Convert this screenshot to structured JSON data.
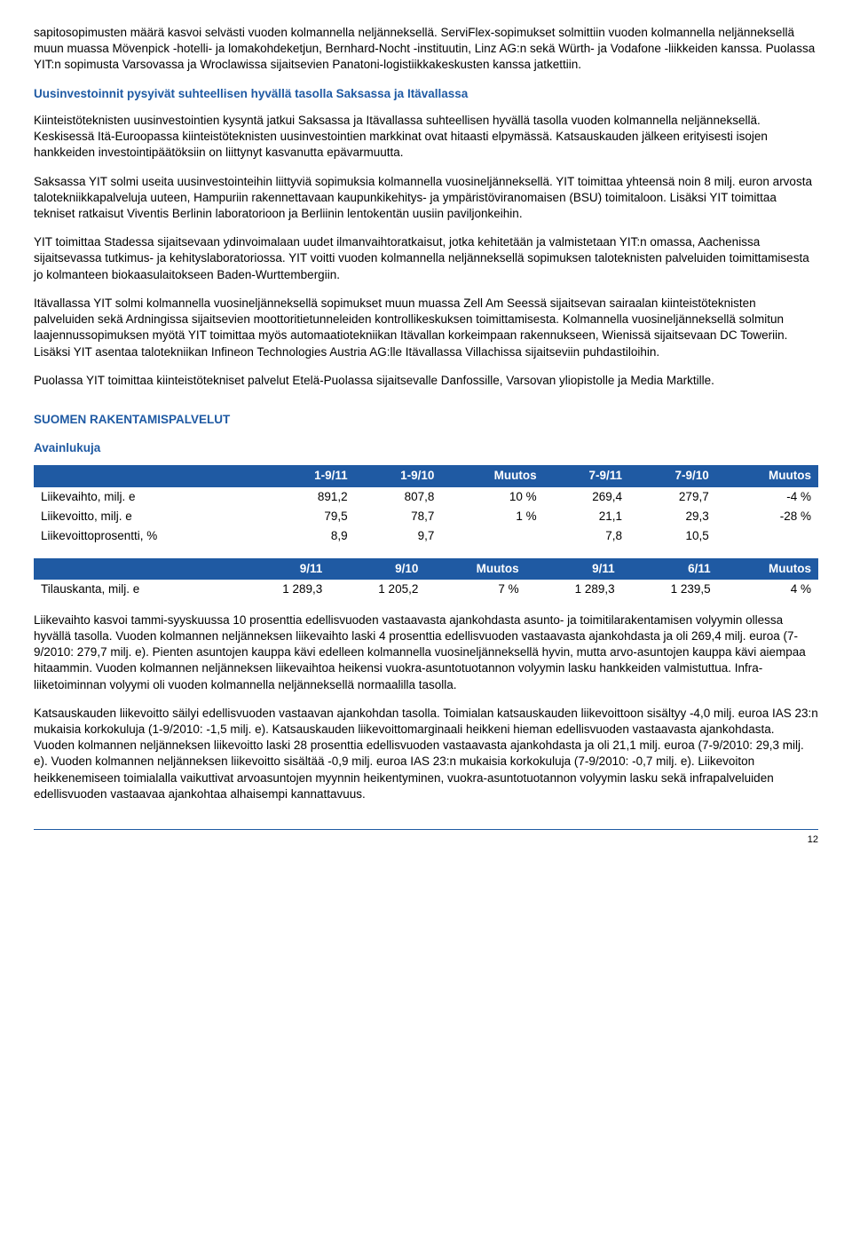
{
  "para1": "sapitosopimusten määrä kasvoi selvästi vuoden kolmannella neljänneksellä. ServiFlex-sopimukset solmittiin vuoden kolmannella neljänneksellä muun muassa Mövenpick -hotelli- ja lomakohdeketjun, Bernhard-Nocht -instituutin, Linz AG:n sekä Würth- ja Vodafone -liikkeiden kanssa. Puolassa YIT:n sopimusta Varsovassa ja Wroclawissa sijaitsevien Panatoni-logistiikkakeskusten kanssa jatkettiin.",
  "h1": "Uusinvestoinnit pysyivät suhteellisen hyvällä tasolla Saksassa ja Itävallassa",
  "para2": "Kiinteistöteknisten uusinvestointien kysyntä jatkui Saksassa ja Itävallassa suhteellisen hyvällä tasolla vuoden kolmannella neljänneksellä. Keskisessä Itä-Euroopassa kiinteistöteknisten uusinvestointien markkinat ovat hitaasti elpymässä. Katsauskauden jälkeen erityisesti isojen hankkeiden investointipäätöksiin on liittynyt kasvanutta epävarmuutta.",
  "para3": "Saksassa YIT solmi useita uusinvestointeihin liittyviä sopimuksia kolmannella vuosineljänneksellä. YIT toimittaa yhteensä noin 8 milj. euron arvosta talotekniikkapalveluja uuteen, Hampuriin rakennettavaan kaupunkikehitys- ja ympäristöviranomaisen (BSU) toimitaloon. Lisäksi YIT toimittaa tekniset ratkaisut Viventis Berlinin laboratorioon ja Berliinin lentokentän uusiin paviljonkeihin.",
  "para4": "YIT toimittaa Stadessa sijaitsevaan ydinvoimalaan uudet ilmanvaihtoratkaisut, jotka kehitetään ja valmistetaan YIT:n omassa, Aachenissa sijaitsevassa tutkimus- ja kehityslaboratoriossa. YIT voitti vuoden kolmannella neljänneksellä sopimuksen taloteknisten palveluiden toimittamisesta jo kolmanteen biokaasulaitokseen Baden-Wurttembergiin.",
  "para5": "Itävallassa YIT solmi kolmannella vuosineljänneksellä sopimukset muun muassa Zell Am Seessä sijaitsevan sairaalan kiinteistöteknisten palveluiden sekä Ardningissa sijaitsevien moottoritietunneleiden kontrollikeskuksen toimittamisesta. Kolmannella vuosineljänneksellä solmitun laajennussopimuksen myötä YIT toimittaa myös automaatiotekniikan Itävallan korkeimpaan rakennukseen, Wienissä sijaitsevaan DC Toweriin. Lisäksi YIT asentaa talotekniikan Infineon Technologies Austria AG:lle Itävallassa Villachissa sijaitseviin puhdastiloihin.",
  "para6": "Puolassa YIT toimittaa kiinteistötekniset palvelut Etelä-Puolassa sijaitsevalle Danfossille, Varsovan yliopistolle ja Media Marktille.",
  "section_head": "SUOMEN RAKENTAMISPALVELUT",
  "subhead": "Avainlukuja",
  "table1": {
    "headers": [
      "",
      "1-9/11",
      "1-9/10",
      "Muutos",
      "7-9/11",
      "7-9/10",
      "Muutos"
    ],
    "rows": [
      [
        "Liikevaihto, milj. e",
        "891,2",
        "807,8",
        "10 %",
        "269,4",
        "279,7",
        "-4 %"
      ],
      [
        "Liikevoitto, milj. e",
        "79,5",
        "78,7",
        "1 %",
        "21,1",
        "29,3",
        "-28 %"
      ],
      [
        "Liikevoittoprosentti, %",
        "8,9",
        "9,7",
        "",
        "7,8",
        "10,5",
        ""
      ]
    ]
  },
  "table2": {
    "headers": [
      "",
      "9/11",
      "9/10",
      "Muutos",
      "9/11",
      "6/11",
      "Muutos"
    ],
    "rows": [
      [
        "Tilauskanta, milj. e",
        "1 289,3",
        "1 205,2",
        "7 %",
        "1 289,3",
        "1 239,5",
        "4 %"
      ]
    ]
  },
  "para7": "Liikevaihto kasvoi tammi-syyskuussa 10 prosenttia edellisvuoden vastaavasta ajankohdasta asunto- ja toimitilarakentamisen volyymin ollessa hyvällä tasolla. Vuoden kolmannen neljänneksen liikevaihto laski 4 prosenttia edellisvuoden vastaavasta ajankohdasta ja oli 269,4 milj. euroa (7-9/2010: 279,7 milj. e). Pienten asuntojen kauppa kävi edelleen kolmannella vuosineljänneksellä hyvin, mutta arvo-asuntojen kauppa kävi aiempaa hitaammin. Vuoden kolmannen neljänneksen liikevaihtoa heikensi vuokra-asuntotuotannon volyymin lasku hankkeiden valmistuttua. Infra-liiketoiminnan volyymi oli vuoden kolmannella neljänneksellä normaalilla tasolla.",
  "para8": "Katsauskauden liikevoitto säilyi edellisvuoden vastaavan ajankohdan tasolla. Toimialan katsauskauden liikevoittoon sisältyy -4,0 milj. euroa IAS 23:n mukaisia korkokuluja (1-9/2010: -1,5 milj. e). Katsauskauden liikevoittomarginaali heikkeni hieman edellisvuoden vastaavasta ajankohdasta. Vuoden kolmannen neljänneksen liikevoitto laski 28 prosenttia edellisvuoden vastaavasta ajankohdasta ja oli 21,1 milj. euroa (7-9/2010: 29,3 milj. e). Vuoden kolmannen neljänneksen liikevoitto sisältää -0,9 milj. euroa IAS 23:n mukaisia korkokuluja (7-9/2010: -0,7 milj. e). Liikevoiton heikkenemiseen toimialalla vaikuttivat arvoasuntojen myynnin heikentyminen, vuokra-asuntotuotannon volyymin lasku sekä infrapalveluiden edellisvuoden vastaavaa ajankohtaa alhaisempi kannattavuus.",
  "page_number": "12"
}
